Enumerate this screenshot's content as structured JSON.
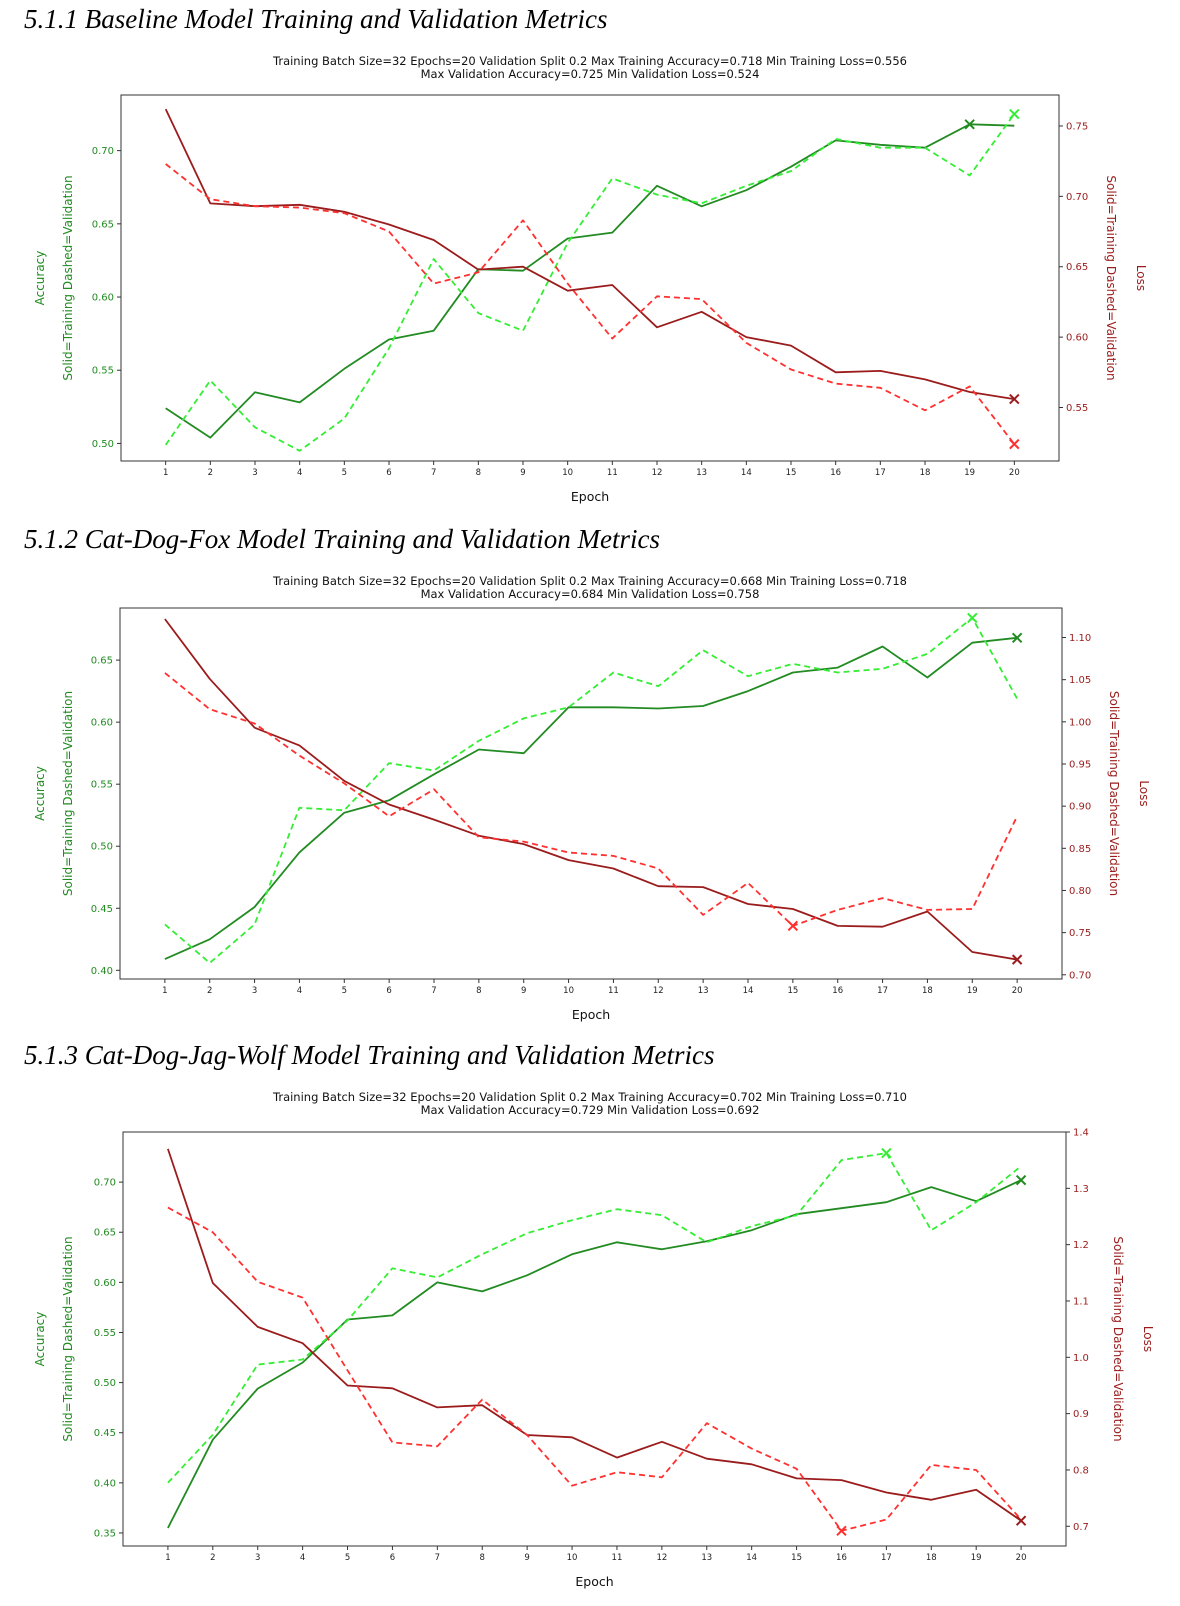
{
  "page": {
    "background": "#ffffff"
  },
  "colors": {
    "train_acc": "#228b22",
    "val_acc": "#33ee33",
    "train_loss": "#9b1c1c",
    "val_loss": "#ff3030"
  },
  "chart_data": [
    {
      "heading": "5.1.1 Baseline Model Training and Validation Metrics",
      "type": "line",
      "title_line1": "Training Batch Size=32 Epochs=20 Validation Split 0.2 Max Training Accuracy=0.718 Min Training Loss=0.556",
      "title_line2": "Max Validation Accuracy=0.725 Min Validation Loss=0.524",
      "xlabel": "Epoch",
      "ylabel_left": "Solid=Training  Dashed=Validation",
      "ylabel_left2": "Accuracy",
      "ylabel_right": "Solid=Training  Dashed=Validation",
      "ylabel_right2": "Loss",
      "x": [
        1,
        2,
        3,
        4,
        5,
        6,
        7,
        8,
        9,
        10,
        11,
        12,
        13,
        14,
        15,
        16,
        17,
        18,
        19,
        20
      ],
      "xlim": [
        0,
        21
      ],
      "y_left_lim": [
        0.488,
        0.738
      ],
      "y_left_ticks": [
        "0.50",
        "0.55",
        "0.60",
        "0.65",
        "0.70"
      ],
      "y_right_lim": [
        0.512,
        0.772
      ],
      "y_right_ticks": [
        "0.55",
        "0.60",
        "0.65",
        "0.70",
        "0.75"
      ],
      "grid": false,
      "series": [
        {
          "metric": "train_acc",
          "axis": "left",
          "style": "solid",
          "values": [
            0.524,
            0.504,
            0.535,
            0.528,
            0.551,
            0.571,
            0.577,
            0.619,
            0.618,
            0.64,
            0.644,
            0.676,
            0.662,
            0.673,
            0.689,
            0.707,
            0.704,
            0.702,
            0.718,
            0.717
          ],
          "marker_index": 18
        },
        {
          "metric": "val_acc",
          "axis": "left",
          "style": "dashed",
          "values": [
            0.499,
            0.543,
            0.511,
            0.495,
            0.517,
            0.565,
            0.626,
            0.589,
            0.577,
            0.637,
            0.681,
            0.67,
            0.664,
            0.676,
            0.686,
            0.708,
            0.702,
            0.702,
            0.683,
            0.725
          ],
          "marker_index": 19
        },
        {
          "metric": "train_loss",
          "axis": "right",
          "style": "solid",
          "values": [
            0.762,
            0.695,
            0.693,
            0.694,
            0.689,
            0.68,
            0.669,
            0.648,
            0.65,
            0.633,
            0.637,
            0.607,
            0.618,
            0.6,
            0.594,
            0.575,
            0.576,
            0.57,
            0.561,
            0.556
          ],
          "marker_index": 19
        },
        {
          "metric": "val_loss",
          "axis": "right",
          "style": "dashed",
          "values": [
            0.723,
            0.698,
            0.693,
            0.692,
            0.688,
            0.675,
            0.638,
            0.646,
            0.683,
            0.638,
            0.599,
            0.629,
            0.627,
            0.596,
            0.577,
            0.567,
            0.564,
            0.548,
            0.565,
            0.524
          ],
          "marker_index": 19
        }
      ]
    },
    {
      "heading": "5.1.2 Cat-Dog-Fox Model Training and Validation Metrics",
      "type": "line",
      "title_line1": "Training Batch Size=32 Epochs=20 Validation Split 0.2 Max Training Accuracy=0.668 Min Training Loss=0.718",
      "title_line2": "Max Validation Accuracy=0.684 Min Validation Loss=0.758",
      "xlabel": "Epoch",
      "ylabel_left": "Solid=Training  Dashed=Validation",
      "ylabel_left2": "Accuracy",
      "ylabel_right": "Solid=Training  Dashed=Validation",
      "ylabel_right2": "Loss",
      "x": [
        1,
        2,
        3,
        4,
        5,
        6,
        7,
        8,
        9,
        10,
        11,
        12,
        13,
        14,
        15,
        16,
        17,
        18,
        19,
        20
      ],
      "xlim": [
        0,
        21
      ],
      "y_left_lim": [
        0.393,
        0.692
      ],
      "y_left_ticks": [
        "0.40",
        "0.45",
        "0.50",
        "0.55",
        "0.60",
        "0.65"
      ],
      "y_right_lim": [
        0.695,
        1.135
      ],
      "y_right_ticks": [
        "0.70",
        "0.75",
        "0.80",
        "0.85",
        "0.90",
        "0.95",
        "1.00",
        "1.05",
        "1.10"
      ],
      "grid": false,
      "series": [
        {
          "metric": "train_acc",
          "axis": "left",
          "style": "solid",
          "values": [
            0.409,
            0.425,
            0.451,
            0.495,
            0.527,
            0.537,
            0.558,
            0.578,
            0.575,
            0.612,
            0.612,
            0.611,
            0.613,
            0.625,
            0.64,
            0.644,
            0.661,
            0.636,
            0.664,
            0.668
          ],
          "marker_index": 19
        },
        {
          "metric": "val_acc",
          "axis": "left",
          "style": "dashed",
          "values": [
            0.437,
            0.406,
            0.437,
            0.531,
            0.529,
            0.567,
            0.561,
            0.585,
            0.603,
            0.612,
            0.64,
            0.629,
            0.658,
            0.637,
            0.647,
            0.64,
            0.643,
            0.655,
            0.684,
            0.619
          ],
          "marker_index": 18
        },
        {
          "metric": "train_loss",
          "axis": "right",
          "style": "solid",
          "values": [
            1.122,
            1.051,
            0.993,
            0.972,
            0.93,
            0.902,
            0.884,
            0.865,
            0.855,
            0.836,
            0.826,
            0.805,
            0.804,
            0.784,
            0.778,
            0.758,
            0.757,
            0.775,
            0.727,
            0.718
          ],
          "marker_index": 19
        },
        {
          "metric": "val_loss",
          "axis": "right",
          "style": "dashed",
          "values": [
            1.058,
            1.015,
            0.998,
            0.96,
            0.927,
            0.888,
            0.92,
            0.863,
            0.858,
            0.845,
            0.841,
            0.826,
            0.771,
            0.809,
            0.758,
            0.777,
            0.791,
            0.777,
            0.778,
            0.888
          ],
          "marker_index": 14
        }
      ]
    },
    {
      "heading": "5.1.3 Cat-Dog-Jag-Wolf Model Training and Validation Metrics",
      "type": "line",
      "title_line1": "Training Batch Size=32 Epochs=20 Validation Split 0.2 Max Training Accuracy=0.702 Min Training Loss=0.710",
      "title_line2": "Max Validation Accuracy=0.729 Min Validation Loss=0.692",
      "xlabel": "Epoch",
      "ylabel_left": "Solid=Training  Dashed=Validation",
      "ylabel_left2": "Accuracy",
      "ylabel_right": "Solid=Training  Dashed=Validation",
      "ylabel_right2": "Loss",
      "x": [
        1,
        2,
        3,
        4,
        5,
        6,
        7,
        8,
        9,
        10,
        11,
        12,
        13,
        14,
        15,
        16,
        17,
        18,
        19,
        20
      ],
      "xlim": [
        0,
        21
      ],
      "y_left_lim": [
        0.337,
        0.75
      ],
      "y_left_ticks": [
        "0.35",
        "0.40",
        "0.45",
        "0.50",
        "0.55",
        "0.60",
        "0.65",
        "0.70"
      ],
      "y_right_lim": [
        0.665,
        1.4
      ],
      "y_right_ticks": [
        "0.7",
        "0.8",
        "0.9",
        "1.0",
        "1.1",
        "1.2",
        "1.3",
        "1.4"
      ],
      "grid": false,
      "series": [
        {
          "metric": "train_acc",
          "axis": "left",
          "style": "solid",
          "values": [
            0.355,
            0.443,
            0.494,
            0.52,
            0.563,
            0.567,
            0.6,
            0.591,
            0.607,
            0.628,
            0.64,
            0.633,
            0.641,
            0.652,
            0.668,
            0.674,
            0.68,
            0.695,
            0.681,
            0.702
          ],
          "marker_index": 19
        },
        {
          "metric": "val_acc",
          "axis": "left",
          "style": "dashed",
          "values": [
            0.4,
            0.448,
            0.518,
            0.523,
            0.562,
            0.614,
            0.605,
            0.628,
            0.649,
            0.662,
            0.673,
            0.667,
            0.64,
            0.656,
            0.667,
            0.722,
            0.729,
            0.652,
            0.68,
            0.716
          ],
          "marker_index": 16
        },
        {
          "metric": "train_loss",
          "axis": "right",
          "style": "solid",
          "values": [
            1.37,
            1.132,
            1.054,
            1.025,
            0.95,
            0.945,
            0.911,
            0.915,
            0.862,
            0.858,
            0.822,
            0.85,
            0.82,
            0.81,
            0.785,
            0.782,
            0.76,
            0.747,
            0.765,
            0.71
          ],
          "marker_index": 19
        },
        {
          "metric": "val_loss",
          "axis": "right",
          "style": "dashed",
          "values": [
            1.266,
            1.222,
            1.134,
            1.106,
            0.977,
            0.849,
            0.842,
            0.925,
            0.862,
            0.772,
            0.796,
            0.787,
            0.883,
            0.838,
            0.802,
            0.692,
            0.712,
            0.809,
            0.8,
            0.712
          ],
          "marker_index": 15
        }
      ]
    }
  ]
}
